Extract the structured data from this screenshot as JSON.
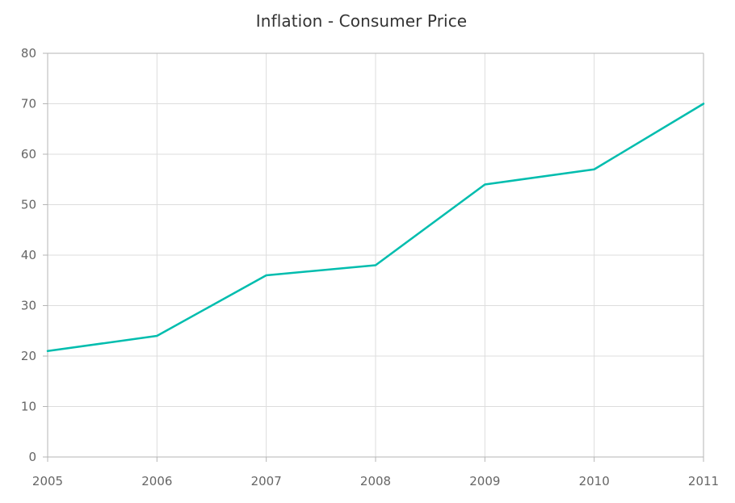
{
  "chart_data": {
    "type": "line",
    "title": "Inflation - Consumer Price",
    "xlabel": "",
    "ylabel": "",
    "x": [
      "2005",
      "2006",
      "2007",
      "2008",
      "2009",
      "2010",
      "2011"
    ],
    "series": [
      {
        "values": [
          21,
          24,
          36,
          38,
          54,
          57,
          70
        ],
        "color": "#00bdae"
      }
    ],
    "ylim": [
      0,
      80
    ],
    "yticks": [
      0,
      10,
      20,
      30,
      40,
      50,
      60,
      70,
      80
    ],
    "grid": true,
    "legend": "none"
  },
  "colors": {
    "line": "#00bdae",
    "grid": "#dddddd",
    "axis": "#b5b5b5",
    "tick_text": "#666666",
    "title_text": "#333333"
  }
}
